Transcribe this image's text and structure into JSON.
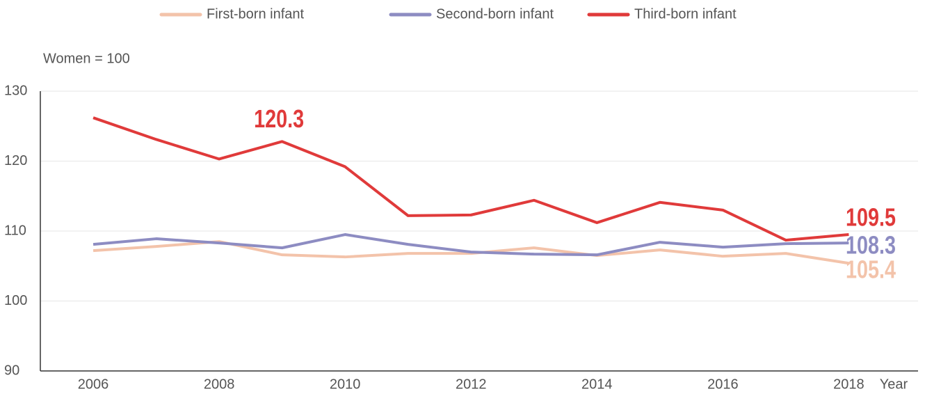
{
  "chart_data": {
    "type": "line",
    "y_label": "Women = 100",
    "x_label": "Year",
    "x": [
      2006,
      2007,
      2008,
      2009,
      2010,
      2011,
      2012,
      2013,
      2014,
      2015,
      2016,
      2017,
      2018
    ],
    "series": [
      {
        "name": "First-born infant",
        "color": "#f3c3aa",
        "values": [
          107.2,
          107.8,
          108.5,
          106.6,
          106.3,
          106.8,
          106.8,
          107.6,
          106.5,
          107.3,
          106.4,
          106.8,
          105.4
        ],
        "value_labels": [
          null,
          null,
          null,
          null,
          null,
          null,
          null,
          null,
          null,
          null,
          null,
          null,
          "105.4"
        ]
      },
      {
        "name": "Second-born infant",
        "color": "#8d8cc2",
        "values": [
          108.1,
          108.9,
          108.3,
          107.6,
          109.5,
          108.1,
          107.0,
          106.7,
          106.6,
          108.4,
          107.7,
          108.2,
          108.3
        ],
        "value_labels": [
          null,
          null,
          null,
          null,
          null,
          null,
          null,
          null,
          null,
          null,
          null,
          null,
          "108.3"
        ]
      },
      {
        "name": "Third-born infant",
        "color": "#e03a3a",
        "values": [
          126.2,
          123.1,
          120.3,
          122.8,
          119.2,
          112.2,
          112.3,
          114.4,
          111.2,
          114.1,
          113.0,
          108.7,
          109.5
        ],
        "value_labels": [
          null,
          null,
          "120.3",
          null,
          null,
          null,
          null,
          null,
          null,
          null,
          null,
          null,
          "109.5"
        ]
      }
    ],
    "xlim": [
      2005.16,
      2019.1
    ],
    "xticks": [
      2006,
      2008,
      2010,
      2012,
      2014,
      2016,
      2018
    ],
    "ylim": [
      90,
      130
    ],
    "yticks": [
      90,
      100,
      110,
      120,
      130
    ],
    "grid": true,
    "legend": "top"
  }
}
